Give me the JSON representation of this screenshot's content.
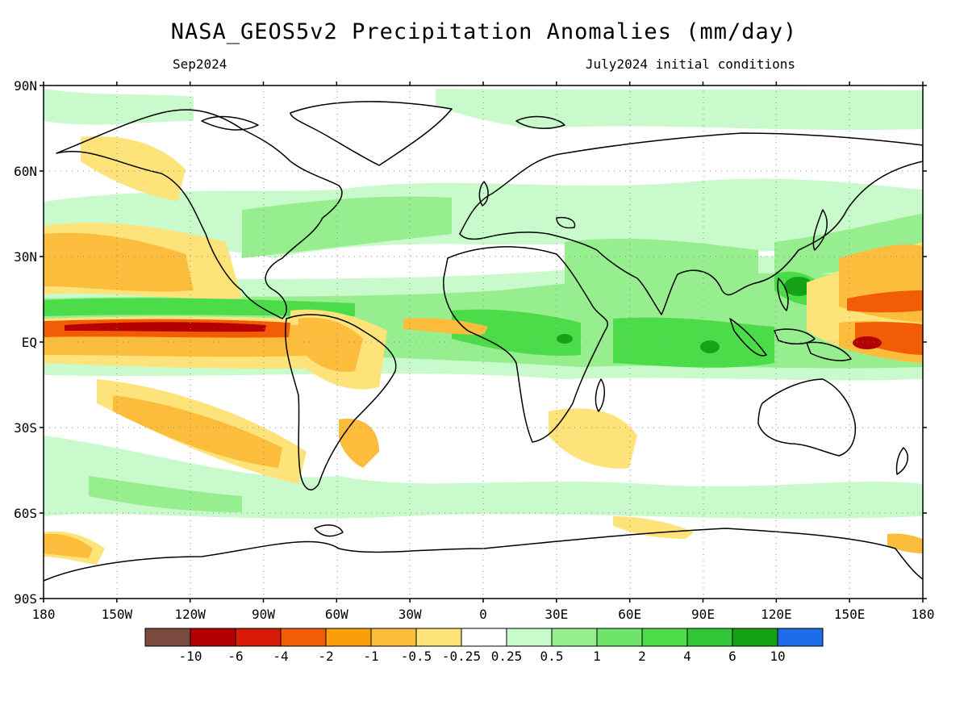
{
  "title": "NASA_GEOS5v2 Precipitation Anomalies (mm/day)",
  "valid_month": "Sep2024",
  "init_conditions": "July2024 initial conditions",
  "lat_labels": [
    "90N",
    "60N",
    "30N",
    "EQ",
    "30S",
    "60S",
    "90S"
  ],
  "lon_labels": [
    "180",
    "150W",
    "120W",
    "90W",
    "60W",
    "30W",
    "0",
    "30E",
    "60E",
    "90E",
    "120E",
    "150E",
    "180"
  ],
  "colorbar": {
    "colors": [
      "#7a4a3e",
      "#b50000",
      "#d81a08",
      "#f25c05",
      "#fa9f0a",
      "#fdbd3c",
      "#fde37a",
      "#ffffff",
      "#c8facb",
      "#96ee8e",
      "#6ee56a",
      "#4cdc4a",
      "#32c638",
      "#14a316",
      "#1e6ce8"
    ],
    "labels": [
      "-10",
      "-6",
      "-4",
      "-2",
      "-1",
      "-0.5",
      "-0.25",
      "0.25",
      "0.5",
      "1",
      "2",
      "4",
      "6",
      "10"
    ]
  },
  "colors": {
    "wet_light": "#c8facb",
    "wet_mid": "#96ee8e",
    "wet_strong": "#4cdc4a",
    "wet_heavy": "#14a316",
    "dry_light": "#fde37a",
    "dry_mid": "#fdbd3c",
    "dry_strong": "#fa9f0a",
    "dry_heavy": "#f25c05",
    "dry_extreme": "#b50000"
  }
}
